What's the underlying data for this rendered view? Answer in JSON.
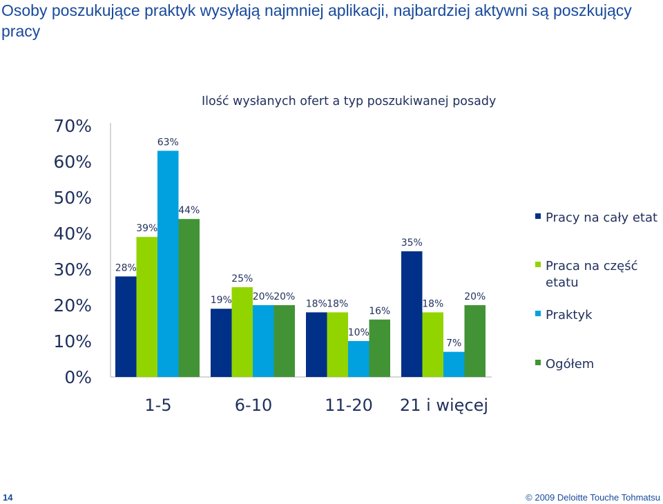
{
  "slide": {
    "title": "Osoby poszukujące praktyk wysyłają najmniej aplikacji, najbardziej aktywni są poszkujący pracy",
    "page_number": "14",
    "copyright": "© 2009 Deloitte Touche Tohmatsu"
  },
  "chart_data": {
    "type": "bar",
    "title": "Ilość wysłanych ofert a typ poszukiwanej posady",
    "categories": [
      "1-5",
      "6-10",
      "11-20",
      "21 i więcej"
    ],
    "series": [
      {
        "name": "Pracy na cały etat",
        "color": "#003087",
        "values": [
          28,
          19,
          18,
          35
        ],
        "labels": [
          "28%",
          "19%",
          "18%",
          "35%"
        ]
      },
      {
        "name": "Praca na część etatu",
        "color": "#92d400",
        "values": [
          39,
          25,
          18,
          18
        ],
        "labels": [
          "39%",
          "25%",
          "18%",
          "18%"
        ]
      },
      {
        "name": "Praktyk",
        "color": "#00a1de",
        "values": [
          63,
          20,
          10,
          7
        ],
        "labels": [
          "63%",
          "20%",
          "10%",
          "7%"
        ]
      },
      {
        "name": "Ogółem",
        "color": "#429335",
        "values": [
          44,
          20,
          16,
          20
        ],
        "labels": [
          "44%",
          "20%",
          "16%",
          "20%"
        ]
      }
    ],
    "yticks": [
      "0%",
      "10%",
      "20%",
      "30%",
      "40%",
      "50%",
      "60%",
      "70%"
    ],
    "ylim": [
      0,
      70
    ],
    "grid": false,
    "legend_position": "right"
  }
}
